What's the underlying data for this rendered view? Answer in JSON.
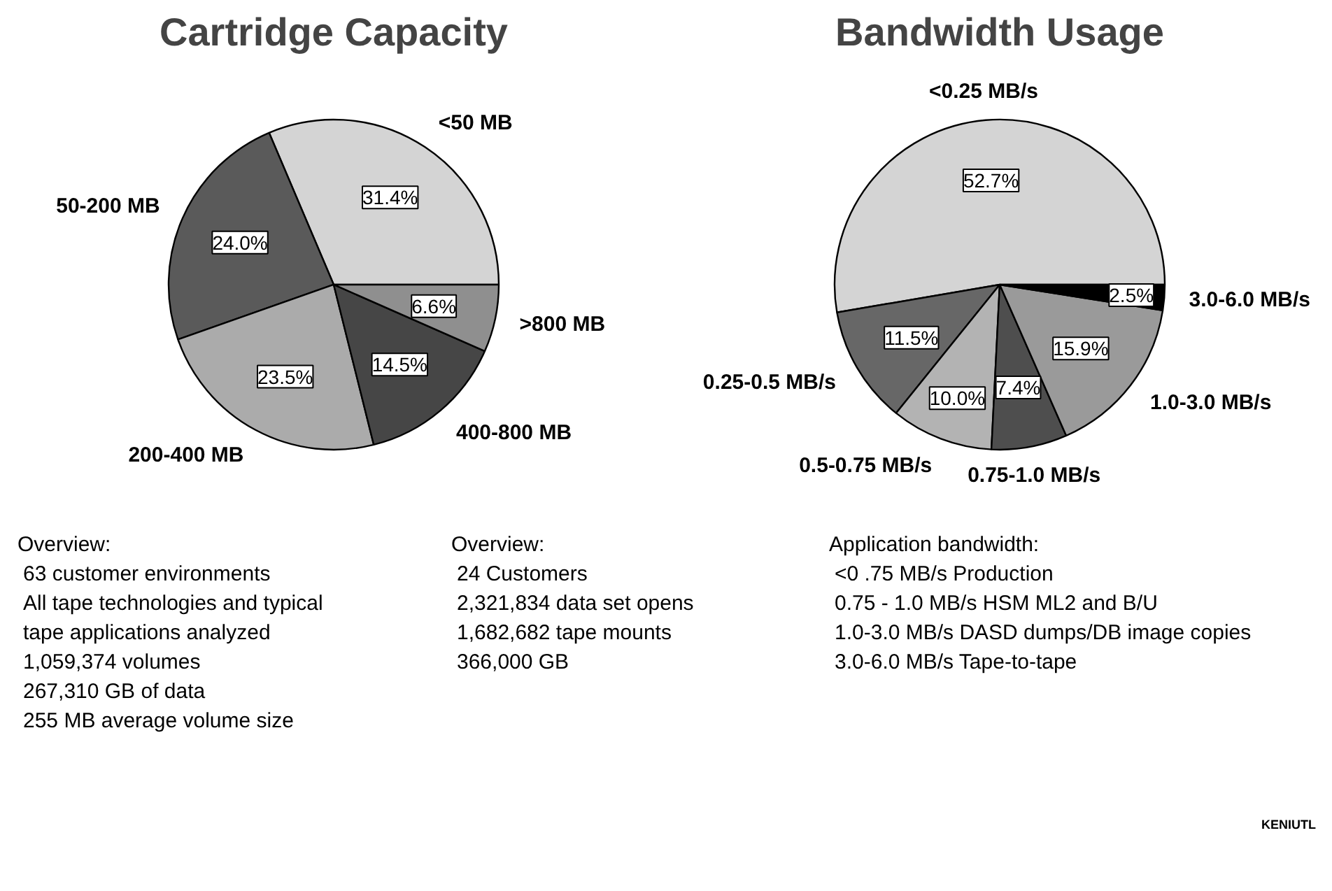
{
  "chart_data": [
    {
      "type": "pie",
      "title": "Cartridge Capacity",
      "categories": [
        "<50 MB",
        "50-200 MB",
        "200-400 MB",
        "400-800 MB",
        ">800 MB"
      ],
      "values": [
        31.4,
        24.0,
        23.5,
        14.5,
        6.6
      ],
      "colors": [
        "#d4d4d4",
        "#5a5a5a",
        "#ababab",
        "#464646",
        "#8f8f8f"
      ],
      "value_labels": [
        "31.4%",
        "24.0%",
        "23.5%",
        "14.5%",
        "6.6%"
      ]
    },
    {
      "type": "pie",
      "title": "Bandwidth Usage",
      "categories": [
        "<0.25 MB/s",
        "0.25-0.5 MB/s",
        "0.5-0.75 MB/s",
        "0.75-1.0 MB/s",
        "1.0-3.0 MB/s",
        "3.0-6.0 MB/s"
      ],
      "values": [
        52.7,
        11.5,
        10.0,
        7.4,
        15.9,
        2.5
      ],
      "colors": [
        "#d4d4d4",
        "#676767",
        "#b3b3b3",
        "#4e4e4e",
        "#9a9a9a",
        "#000000"
      ],
      "value_labels": [
        "52.7%",
        "11.5%",
        "10.0%",
        "7.4%",
        "15.9%",
        "2.5%"
      ]
    },
    {
      "type": "other",
      "title": "Overview:",
      "annotations": [
        "63 customer environments",
        "All tape technologies and typical tape applications analyzed",
        "1,059,374 volumes",
        "267,310 GB of data",
        "255 MB average volume size"
      ]
    },
    {
      "type": "other",
      "title": "Overview:",
      "annotations": [
        "24 Customers",
        "2,321,834 data set opens",
        "1,682,682 tape mounts",
        "366,000 GB"
      ]
    },
    {
      "type": "other",
      "title": "Application bandwidth:",
      "annotations": [
        "<0 .75 MB/s Production",
        "0.75 - 1.0 MB/s HSM ML2 and B/U",
        "1.0-3.0 MB/s DASD dumps/DB image copies",
        "3.0-6.0 MB/s Tape-to-tape"
      ]
    },
    {
      "type": "other",
      "annotations": [
        "KENIUTL"
      ]
    }
  ]
}
